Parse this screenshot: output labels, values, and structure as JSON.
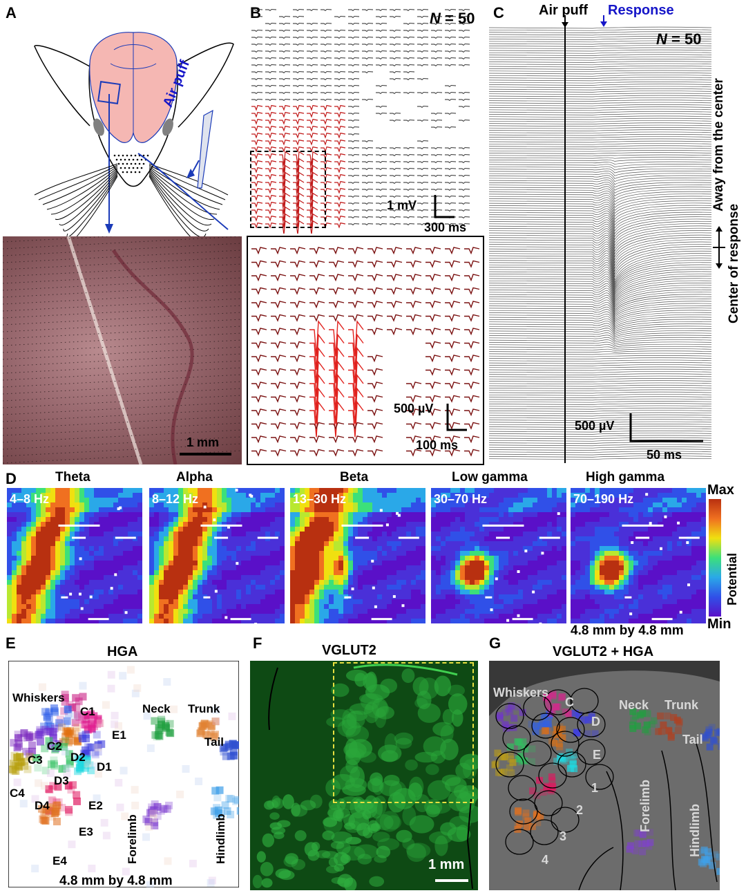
{
  "panels": {
    "a": "A",
    "b": "B",
    "c": "C",
    "d": "D",
    "e": "E",
    "f": "F",
    "g": "G"
  },
  "a": {
    "stimulus": "Air puff",
    "scale": "1 mm"
  },
  "b": {
    "n_italic": "N",
    "n_rest": " = 50",
    "scale_v": "1 mV",
    "scale_t": "300 ms",
    "inset_scale_v": "500 µV",
    "inset_scale_t": "100 ms"
  },
  "c": {
    "stim": "Air puff",
    "resp": "Response",
    "n_italic": "N",
    "n_rest": " = 50",
    "side_away": "Away from the center",
    "side_center": "Center of response",
    "scale_v": "500 µV",
    "scale_t": "50 ms"
  },
  "d": {
    "bands": [
      {
        "name": "Theta",
        "range": "4–8 Hz"
      },
      {
        "name": "Alpha",
        "range": "8–12 Hz"
      },
      {
        "name": "Beta",
        "range": "13–30 Hz"
      },
      {
        "name": "Low gamma",
        "range": "30–70 Hz"
      },
      {
        "name": "High gamma",
        "range": "70–190 Hz"
      }
    ],
    "cbar_max": "Max",
    "cbar_min": "Min",
    "cbar_label": "Potential",
    "size": "4.8 mm by 4.8 mm",
    "colors": {
      "low": "#5a10c8",
      "mid1": "#2aa8e8",
      "mid2": "#3ce07a",
      "mid3": "#f0e010",
      "high": "#b83010"
    }
  },
  "e": {
    "title": "HGA",
    "size": "4.8 mm by 4.8 mm",
    "labels": {
      "whiskers": "Whiskers",
      "c1": "C1",
      "e1": "E1",
      "c2": "C2",
      "d2": "D2",
      "d1": "D1",
      "c3": "C3",
      "d3": "D3",
      "c4": "C4",
      "d4": "D4",
      "e2": "E2",
      "e3": "E3",
      "e4": "E4",
      "neck": "Neck",
      "trunk": "Trunk",
      "tail": "Tail",
      "forelimb": "Forelimb",
      "hindlimb": "Hindlimb"
    }
  },
  "f": {
    "title": "VGLUT2",
    "scale": "1 mm"
  },
  "g": {
    "title": "VGLUT2 + HGA",
    "labels": {
      "whiskers": "Whiskers",
      "c": "C",
      "d": "D",
      "e": "E",
      "neck": "Neck",
      "trunk": "Trunk",
      "tail": "Tail",
      "r1": "1",
      "r2": "2",
      "r3": "3",
      "r4": "4",
      "forelimb": "Forelimb",
      "hindlimb": "Hindlimb"
    }
  }
}
